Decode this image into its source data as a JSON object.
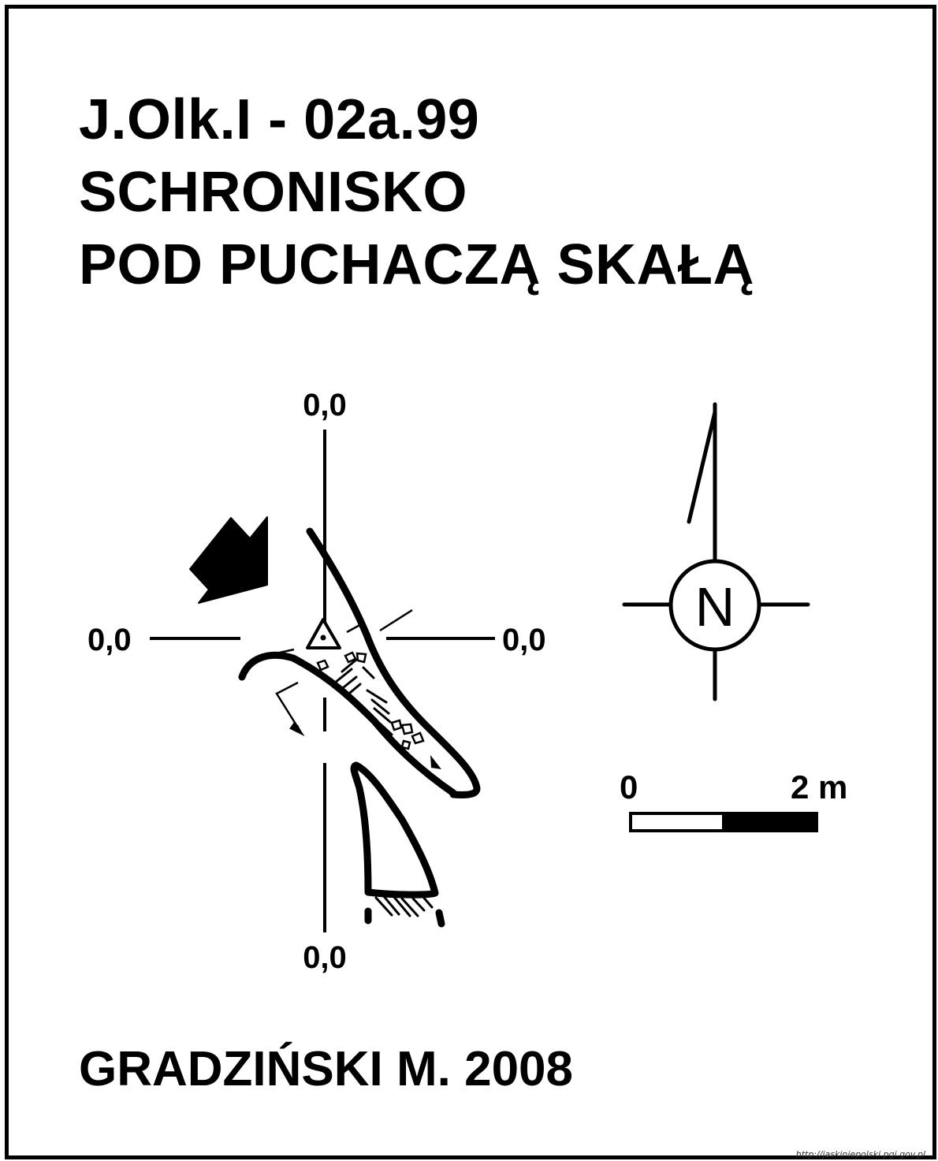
{
  "title": {
    "line1": "J.Olk.I - 02a.99",
    "line2": "SCHRONISKO",
    "line3": "POD PUCHACZĄ SKAŁĄ"
  },
  "coordinates": {
    "top": "0,0",
    "left": "0,0",
    "right": "0,0",
    "bottom": "0,0"
  },
  "compass": {
    "label": "N"
  },
  "scale_bar": {
    "start_label": "0",
    "end_label": "2 m"
  },
  "author": "GRADZIŃSKI M. 2008",
  "watermark": "http://jaskiniepolski.pgi.gov.pl",
  "colors": {
    "ink": "#000000",
    "paper": "#ffffff"
  },
  "icons": {
    "entrance_arrow": "entrance-arrow-icon",
    "survey_station": "survey-station-triangle-icon",
    "north_arrow": "north-arrow-icon"
  }
}
